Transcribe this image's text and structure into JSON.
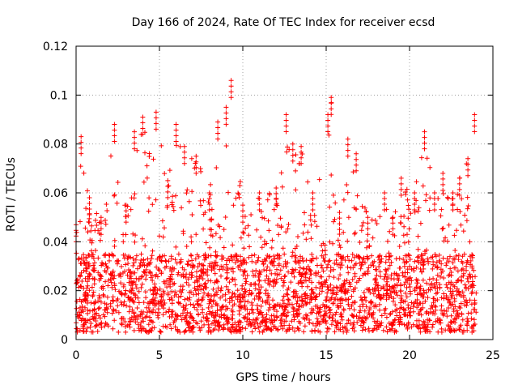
{
  "chart_data": {
    "type": "scatter",
    "title": "Day 166 of 2024, Rate Of TEC Index for receiver ecsd",
    "xlabel": "GPS time / hours",
    "ylabel": "ROTI / TECUs",
    "xlim": [
      0,
      25
    ],
    "ylim": [
      0,
      0.12
    ],
    "xticks": [
      0,
      5,
      10,
      15,
      20,
      25
    ],
    "xtick_labels": [
      "0",
      "5",
      "10",
      "15",
      "20",
      "25"
    ],
    "yticks": [
      0,
      0.02,
      0.04,
      0.06,
      0.08,
      0.1,
      0.12
    ],
    "ytick_labels": [
      "0",
      "0.02",
      "0.04",
      "0.06",
      "0.08",
      "0.1",
      "0.12"
    ],
    "grid": true,
    "marker": "+",
    "series": [
      {
        "name": "ROTI",
        "color": "#ff0000",
        "data_extent_hours": [
          0,
          24
        ],
        "typical_range": [
          0.003,
          0.035
        ],
        "envelope": [
          {
            "x": 0.0,
            "ymax": 0.047
          },
          {
            "x": 0.3,
            "ymax": 0.083
          },
          {
            "x": 0.8,
            "ymax": 0.058
          },
          {
            "x": 1.5,
            "ymax": 0.05
          },
          {
            "x": 2.3,
            "ymax": 0.088
          },
          {
            "x": 3.0,
            "ymax": 0.055
          },
          {
            "x": 3.5,
            "ymax": 0.085
          },
          {
            "x": 4.0,
            "ymax": 0.091
          },
          {
            "x": 4.8,
            "ymax": 0.093
          },
          {
            "x": 5.5,
            "ymax": 0.065
          },
          {
            "x": 6.0,
            "ymax": 0.088
          },
          {
            "x": 6.5,
            "ymax": 0.079
          },
          {
            "x": 7.2,
            "ymax": 0.075
          },
          {
            "x": 8.0,
            "ymax": 0.06
          },
          {
            "x": 8.5,
            "ymax": 0.089
          },
          {
            "x": 9.0,
            "ymax": 0.095
          },
          {
            "x": 9.3,
            "ymax": 0.106
          },
          {
            "x": 10.0,
            "ymax": 0.055
          },
          {
            "x": 11.0,
            "ymax": 0.06
          },
          {
            "x": 12.0,
            "ymax": 0.062
          },
          {
            "x": 12.6,
            "ymax": 0.092
          },
          {
            "x": 13.0,
            "ymax": 0.08
          },
          {
            "x": 13.5,
            "ymax": 0.079
          },
          {
            "x": 14.2,
            "ymax": 0.06
          },
          {
            "x": 15.1,
            "ymax": 0.092
          },
          {
            "x": 15.3,
            "ymax": 0.099
          },
          {
            "x": 15.8,
            "ymax": 0.052
          },
          {
            "x": 16.3,
            "ymax": 0.082
          },
          {
            "x": 16.8,
            "ymax": 0.076
          },
          {
            "x": 17.5,
            "ymax": 0.05
          },
          {
            "x": 18.5,
            "ymax": 0.06
          },
          {
            "x": 19.0,
            "ymax": 0.05
          },
          {
            "x": 19.5,
            "ymax": 0.066
          },
          {
            "x": 20.3,
            "ymax": 0.06
          },
          {
            "x": 20.9,
            "ymax": 0.085
          },
          {
            "x": 21.5,
            "ymax": 0.06
          },
          {
            "x": 22.0,
            "ymax": 0.068
          },
          {
            "x": 22.6,
            "ymax": 0.06
          },
          {
            "x": 23.0,
            "ymax": 0.066
          },
          {
            "x": 23.5,
            "ymax": 0.074
          },
          {
            "x": 23.9,
            "ymax": 0.092
          }
        ]
      }
    ]
  }
}
